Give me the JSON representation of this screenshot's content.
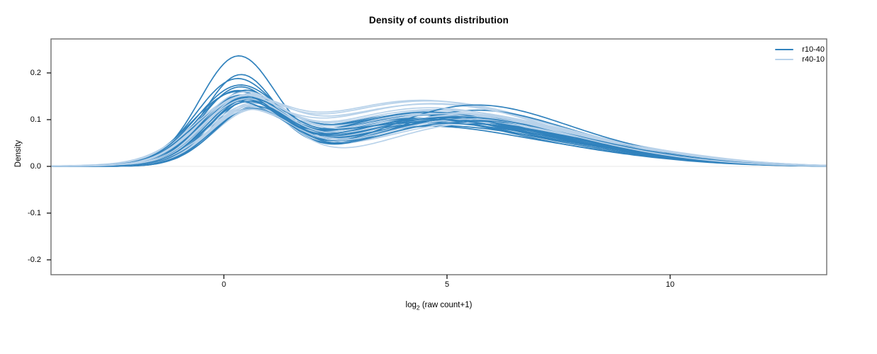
{
  "title": "Density of counts distribution",
  "axes": {
    "ylabel": "Density",
    "xlabel": {
      "prefix": "log",
      "sub": "2",
      "rest": " (raw count+1)"
    },
    "ytick_labels": [
      "0.2",
      "0.1",
      "0.0",
      "-0.1",
      "-0.2"
    ],
    "xtick_labels": [
      "0",
      "5",
      "10"
    ]
  },
  "legend": {
    "items": [
      {
        "label": "r10-40",
        "color": "#3182bd"
      },
      {
        "label": "r40-10",
        "color": "#b8d2ea"
      }
    ]
  },
  "colors": {
    "frame": "#6f6f6f",
    "tick": "#000000",
    "zero_line": "#e7e7e7",
    "background": "#ffffff"
  },
  "chart_data": {
    "type": "line",
    "title": "Density of counts distribution",
    "xlabel": "log2 (raw count+1)",
    "ylabel": "Density",
    "xlim": [
      -3.9,
      13.5
    ],
    "ylim": [
      -0.232,
      0.273
    ],
    "xticks": [
      0,
      5,
      10
    ],
    "yticks": [
      0.2,
      0.1,
      0.0,
      -0.1,
      -0.2
    ],
    "grid": false,
    "zero_line": true,
    "legend_position": "top-right",
    "curve_model": "density(x) = A1*exp(-(x-m1)^2/(2*s1^2)) + A2*exp(-(x-m2)^2/(2*s2^2)) + A3*exp(-(x-m3)^2/(2*s3^2)); params per curve = [m1,s1,A1,m2,s2,A2,m3,s3,A3]",
    "series": [
      {
        "name": "r10-40",
        "color": "#3182bd",
        "line_width": 1.7,
        "curves": [
          [
            0.3,
            0.85,
            0.225,
            4.2,
            2.0,
            0.075,
            7.5,
            2.2,
            0.03
          ],
          [
            0.35,
            0.8,
            0.185,
            4.5,
            2.1,
            0.08,
            8.0,
            2.0,
            0.028
          ],
          [
            0.25,
            0.9,
            0.175,
            4.0,
            1.9,
            0.085,
            7.0,
            2.3,
            0.035
          ],
          [
            0.45,
            0.85,
            0.15,
            4.8,
            2.2,
            0.09,
            8.5,
            2.0,
            0.025
          ],
          [
            0.2,
            0.95,
            0.14,
            3.8,
            2.0,
            0.095,
            7.2,
            2.4,
            0.04
          ],
          [
            0.55,
            0.8,
            0.135,
            5.2,
            2.1,
            0.1,
            9.0,
            1.8,
            0.02
          ],
          [
            0.3,
            0.9,
            0.13,
            4.4,
            2.3,
            0.105,
            7.8,
            2.1,
            0.03
          ],
          [
            0.6,
            0.85,
            0.125,
            5.5,
            2.0,
            0.115,
            8.8,
            1.9,
            0.022
          ],
          [
            0.4,
            0.95,
            0.12,
            4.1,
            2.2,
            0.1,
            7.4,
            2.2,
            0.033
          ],
          [
            0.25,
            0.88,
            0.145,
            4.6,
            2.4,
            0.088,
            8.2,
            2.0,
            0.027
          ],
          [
            0.5,
            0.82,
            0.138,
            5.0,
            2.0,
            0.092,
            8.6,
            2.1,
            0.024
          ],
          [
            0.35,
            0.92,
            0.128,
            4.3,
            2.1,
            0.098,
            7.6,
            2.3,
            0.031
          ],
          [
            0.65,
            0.86,
            0.118,
            5.4,
            2.2,
            0.104,
            9.2,
            1.8,
            0.018
          ],
          [
            0.3,
            0.84,
            0.152,
            3.9,
            2.0,
            0.086,
            7.1,
            2.4,
            0.037
          ],
          [
            0.45,
            0.9,
            0.132,
            4.7,
            2.3,
            0.094,
            8.4,
            2.0,
            0.026
          ],
          [
            0.2,
            0.93,
            0.122,
            4.2,
            2.1,
            0.102,
            7.3,
            2.2,
            0.034
          ],
          [
            0.55,
            0.87,
            0.142,
            5.1,
            2.0,
            0.09,
            8.9,
            1.9,
            0.021
          ],
          [
            0.4,
            0.83,
            0.126,
            4.5,
            2.2,
            0.096,
            8.0,
            2.1,
            0.029
          ],
          [
            0.28,
            0.91,
            0.148,
            4.0,
            2.4,
            0.084,
            7.7,
            2.3,
            0.032
          ],
          [
            0.6,
            0.88,
            0.116,
            5.6,
            2.1,
            0.13,
            9.4,
            1.7,
            0.016
          ],
          [
            0.33,
            0.86,
            0.136,
            4.35,
            2.15,
            0.093,
            7.9,
            2.15,
            0.028
          ],
          [
            0.48,
            0.89,
            0.124,
            4.9,
            2.25,
            0.099,
            8.3,
            2.05,
            0.025
          ]
        ]
      },
      {
        "name": "r40-10",
        "color": "#b8d2ea",
        "line_width": 1.7,
        "curves": [
          [
            0.4,
            0.9,
            0.1,
            4.5,
            2.3,
            0.105,
            8.0,
            2.2,
            0.035
          ],
          [
            0.55,
            0.95,
            0.11,
            5.0,
            2.2,
            0.1,
            8.5,
            2.1,
            0.03
          ],
          [
            0.3,
            1.0,
            0.105,
            4.2,
            2.4,
            0.118,
            7.5,
            2.3,
            0.04
          ],
          [
            0.65,
            0.88,
            0.115,
            5.4,
            2.1,
            0.095,
            9.0,
            2.0,
            0.026
          ],
          [
            0.45,
            0.92,
            0.12,
            4.7,
            2.3,
            0.102,
            8.2,
            2.2,
            0.032
          ],
          [
            0.25,
            0.98,
            0.108,
            4.0,
            2.5,
            0.12,
            7.2,
            2.4,
            0.042
          ],
          [
            0.6,
            0.9,
            0.125,
            5.2,
            2.2,
            0.098,
            8.8,
            2.0,
            0.028
          ],
          [
            0.35,
            0.94,
            0.112,
            4.4,
            2.4,
            0.106,
            7.8,
            2.3,
            0.036
          ],
          [
            0.5,
            0.96,
            0.118,
            4.9,
            2.2,
            0.096,
            8.4,
            2.1,
            0.03
          ],
          [
            0.42,
            0.91,
            0.13,
            4.6,
            2.3,
            0.104,
            8.1,
            2.2,
            0.033
          ],
          [
            0.58,
            0.89,
            0.122,
            5.3,
            2.1,
            0.094,
            9.2,
            1.9,
            0.024
          ],
          [
            0.32,
            0.97,
            0.114,
            4.1,
            2.5,
            0.116,
            7.4,
            2.4,
            0.039
          ],
          [
            0.68,
            0.92,
            0.126,
            5.5,
            2.2,
            0.092,
            9.5,
            1.8,
            0.022
          ],
          [
            0.38,
            0.93,
            0.135,
            4.3,
            2.3,
            0.1,
            7.6,
            2.3,
            0.035
          ],
          [
            0.52,
            0.95,
            0.116,
            5.1,
            2.2,
            0.103,
            8.6,
            2.1,
            0.029
          ],
          [
            0.28,
            0.99,
            0.109,
            3.9,
            2.4,
            0.119,
            7.0,
            2.5,
            0.043
          ],
          [
            0.62,
            0.9,
            0.121,
            5.6,
            2.0,
            0.09,
            9.3,
            1.9,
            0.023
          ],
          [
            0.44,
            0.94,
            0.128,
            4.8,
            2.3,
            0.097,
            8.3,
            2.2,
            0.031
          ],
          [
            0.36,
            0.92,
            0.119,
            4.25,
            2.45,
            0.107,
            7.7,
            2.35,
            0.037
          ],
          [
            0.56,
            0.96,
            0.113,
            5.25,
            2.15,
            0.095,
            8.9,
            2.05,
            0.027
          ],
          [
            0.48,
            0.91,
            0.132,
            4.55,
            2.35,
            0.101,
            8.0,
            2.25,
            0.034
          ],
          [
            0.34,
            0.95,
            0.124,
            4.15,
            2.25,
            0.109,
            7.35,
            2.3,
            0.038
          ]
        ]
      }
    ]
  }
}
